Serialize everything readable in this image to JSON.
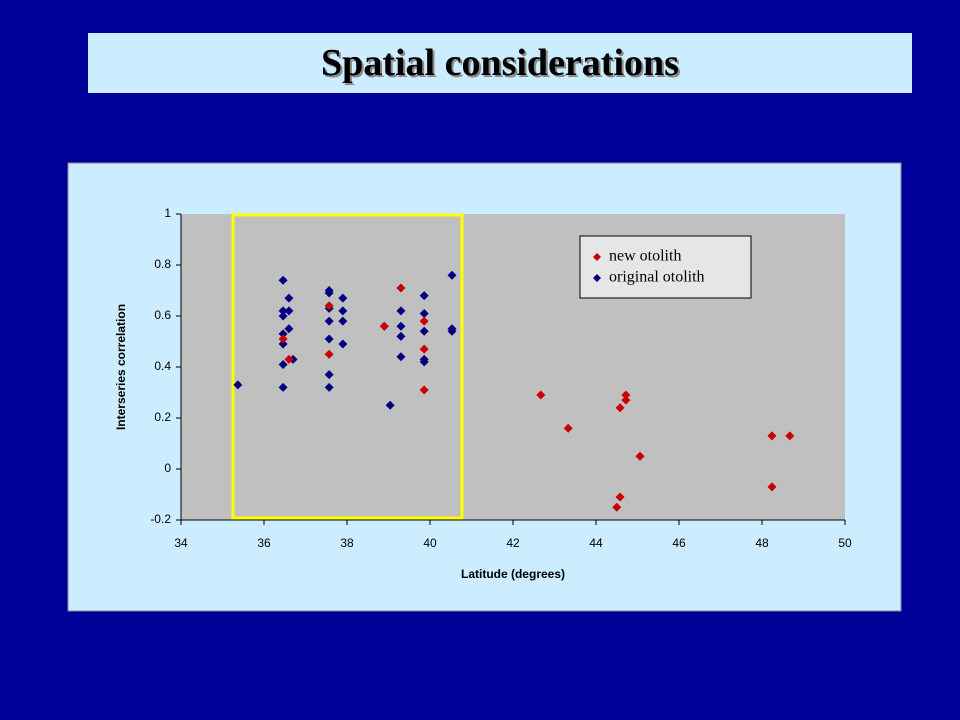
{
  "title": "Spatial considerations",
  "chart_data": {
    "type": "scatter",
    "xlabel": "Latitude (degrees)",
    "ylabel": "Interseries correlation",
    "xlim": [
      34,
      50
    ],
    "xticks": [
      34,
      36,
      38,
      40,
      42,
      44,
      46,
      48,
      50
    ],
    "ylim": [
      -0.2,
      1
    ],
    "yticks": [
      -0.2,
      0,
      0.2,
      0.4,
      0.6,
      0.8,
      1
    ],
    "series": [
      {
        "name": "new otolith",
        "color": "#cc0000",
        "x": [
          36.46,
          36.6,
          37.57,
          37.57,
          38.9,
          39.3,
          39.86,
          39.86,
          39.86,
          42.67,
          43.33,
          44.58,
          44.72,
          44.72,
          45.06,
          44.58,
          44.5,
          48.24,
          48.67,
          48.24
        ],
        "values": [
          0.51,
          0.43,
          0.64,
          0.45,
          0.56,
          0.71,
          0.58,
          0.47,
          0.31,
          0.29,
          0.16,
          0.24,
          0.29,
          0.27,
          0.05,
          -0.11,
          -0.15,
          0.13,
          0.13,
          -0.07
        ]
      },
      {
        "name": "original otolith",
        "color": "#000080",
        "x": [
          35.37,
          36.46,
          36.46,
          36.46,
          36.46,
          36.46,
          36.46,
          36.46,
          36.6,
          36.6,
          36.6,
          36.7,
          37.57,
          37.57,
          37.57,
          37.57,
          37.57,
          37.57,
          37.57,
          37.9,
          37.9,
          37.9,
          37.9,
          38.9,
          39.04,
          39.3,
          39.3,
          39.3,
          39.3,
          39.86,
          39.86,
          39.86,
          39.86,
          39.86,
          40.53,
          40.53,
          40.53
        ],
        "values": [
          0.33,
          0.74,
          0.62,
          0.6,
          0.53,
          0.49,
          0.41,
          0.32,
          0.67,
          0.62,
          0.55,
          0.43,
          0.7,
          0.69,
          0.63,
          0.58,
          0.51,
          0.37,
          0.32,
          0.67,
          0.62,
          0.58,
          0.49,
          0.56,
          0.25,
          0.62,
          0.56,
          0.52,
          0.44,
          0.68,
          0.61,
          0.54,
          0.43,
          0.42,
          0.76,
          0.55,
          0.54
        ]
      }
    ]
  }
}
